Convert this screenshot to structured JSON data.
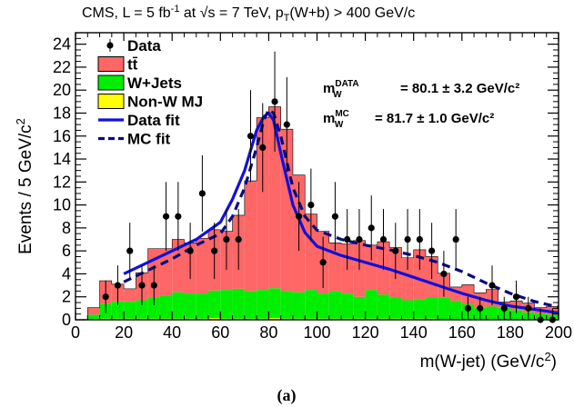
{
  "chart_data": {
    "type": "histogram",
    "title": "CMS, L = 5 fb⁻¹ at √s = 7 TeV, pT(W+b) > 400 GeV/c",
    "xlabel": "m(W-jet) (GeV/c²)",
    "ylabel": "Events / 5 GeV/c²",
    "caption": "(a)",
    "xlim": [
      0,
      200
    ],
    "ylim": [
      0,
      25
    ],
    "x_ticks": [
      0,
      20,
      40,
      60,
      80,
      100,
      120,
      140,
      160,
      180,
      200
    ],
    "y_ticks": [
      0,
      2,
      4,
      6,
      8,
      10,
      12,
      14,
      16,
      18,
      20,
      22,
      24
    ],
    "bin_edges": [
      5,
      10,
      15,
      20,
      25,
      30,
      35,
      40,
      45,
      50,
      55,
      60,
      65,
      70,
      75,
      80,
      85,
      90,
      95,
      100,
      105,
      110,
      115,
      120,
      125,
      130,
      135,
      140,
      145,
      150,
      155,
      160,
      165,
      170,
      175,
      180,
      185,
      190,
      195,
      200
    ],
    "stack": [
      {
        "name": "Non-W MJ",
        "color": "#ffff00",
        "values": [
          0.05,
          0.1,
          0.1,
          0.1,
          0.1,
          0.1,
          0.1,
          0.1,
          0.1,
          0.1,
          0.15,
          0.1,
          0.1,
          0.1,
          0.1,
          0.15,
          0.1,
          0.1,
          0.1,
          0.1,
          0.1,
          0.1,
          0.1,
          0.1,
          0.1,
          0.1,
          0.1,
          0.1,
          0.1,
          0.05,
          0.05,
          0.05,
          0.05,
          0.05,
          0.05,
          0.05,
          0.05,
          0.05,
          0.05
        ]
      },
      {
        "name": "W+Jets",
        "color": "#00ee00",
        "values": [
          0.4,
          1.3,
          1.5,
          1.5,
          1.6,
          1.8,
          2.0,
          2.3,
          2.2,
          2.2,
          2.4,
          2.5,
          2.6,
          2.4,
          2.5,
          2.6,
          2.4,
          2.3,
          2.5,
          2.2,
          2.4,
          2.2,
          1.9,
          2.5,
          2.1,
          1.8,
          1.6,
          1.7,
          1.8,
          1.9,
          1.6,
          1.3,
          1.0,
          1.1,
          1.0,
          0.8,
          0.6,
          0.5,
          0.4
        ]
      },
      {
        "name": "tt̄",
        "color": "#ff6666",
        "values": [
          0.6,
          2.0,
          1.5,
          1.1,
          2.4,
          4.3,
          4.1,
          4.6,
          4.4,
          4.8,
          5.3,
          5.1,
          6.4,
          9.6,
          15.0,
          15.8,
          14.1,
          10.2,
          6.6,
          5.4,
          4.2,
          4.3,
          4.9,
          3.9,
          4.6,
          4.4,
          3.7,
          4.3,
          3.6,
          2.1,
          1.2,
          1.7,
          1.3,
          1.5,
          0.5,
          0.8,
          0.8,
          0.5,
          0.7
        ]
      }
    ],
    "data_points": {
      "name": "Data",
      "x": [
        12.5,
        17.5,
        22.5,
        27.5,
        32.5,
        37.5,
        42.5,
        47.5,
        52.5,
        57.5,
        62.5,
        67.5,
        72.5,
        77.5,
        82.5,
        87.5,
        92.5,
        97.5,
        102.5,
        107.5,
        112.5,
        117.5,
        122.5,
        127.5,
        132.5,
        137.5,
        142.5,
        147.5,
        152.5,
        157.5,
        162.5,
        167.5,
        172.5,
        177.5,
        182.5,
        187.5,
        192.5,
        197.5
      ],
      "y": [
        2,
        3,
        6,
        3,
        3,
        9,
        9,
        6,
        11,
        6,
        7,
        7,
        16,
        15,
        19,
        17,
        9,
        10,
        5,
        9,
        7,
        7,
        8,
        7,
        6,
        7,
        7,
        6,
        4,
        7,
        1,
        1,
        3,
        1,
        2,
        1,
        0,
        0
      ]
    },
    "fits": [
      {
        "name": "Data fit",
        "style": "solid",
        "color": "#1010dd",
        "x": [
          20,
          30,
          40,
          50,
          60,
          65,
          70,
          75,
          78,
          80,
          82,
          85,
          90,
          95,
          100,
          110,
          120,
          130,
          140,
          150,
          160,
          170,
          180,
          190,
          200
        ],
        "y": [
          4.0,
          5.0,
          6.0,
          7.0,
          8.5,
          10.5,
          13.0,
          16.5,
          17.7,
          18.0,
          17.4,
          14.5,
          10.0,
          7.6,
          6.4,
          5.6,
          5.0,
          4.4,
          3.7,
          3.0,
          2.3,
          1.7,
          1.2,
          0.9,
          0.6
        ]
      },
      {
        "name": "MC fit",
        "style": "dashed",
        "color": "#0a0a80",
        "x": [
          20,
          30,
          40,
          50,
          60,
          65,
          70,
          75,
          78,
          80,
          82,
          85,
          90,
          95,
          100,
          110,
          120,
          130,
          140,
          150,
          160,
          170,
          180,
          190,
          200
        ],
        "y": [
          3.3,
          4.3,
          5.3,
          6.5,
          7.5,
          9.0,
          11.5,
          15.0,
          17.4,
          18.3,
          18.0,
          16.0,
          11.5,
          9.0,
          7.8,
          7.0,
          6.5,
          6.1,
          5.6,
          5.0,
          4.2,
          3.2,
          2.3,
          1.6,
          1.1
        ]
      }
    ],
    "legend": {
      "placement": "top-left",
      "entries": [
        {
          "label": "Data",
          "kind": "marker"
        },
        {
          "label": "tt̄",
          "kind": "box",
          "color": "#ff6666"
        },
        {
          "label": "W+Jets",
          "kind": "box",
          "color": "#00ee00"
        },
        {
          "label": "Non-W MJ",
          "kind": "box",
          "color": "#ffff00"
        },
        {
          "label": "Data fit",
          "kind": "line",
          "style": "solid",
          "color": "#1010dd"
        },
        {
          "label": "MC fit",
          "kind": "line",
          "style": "dashed",
          "color": "#0a0a80"
        }
      ]
    },
    "annotations": [
      {
        "label": "m_W^DATA",
        "value": "= 80.1 ± 3.2 GeV/c²"
      },
      {
        "label": "m_W^MC",
        "value": "= 81.7 ± 1.0 GeV/c²"
      }
    ]
  }
}
